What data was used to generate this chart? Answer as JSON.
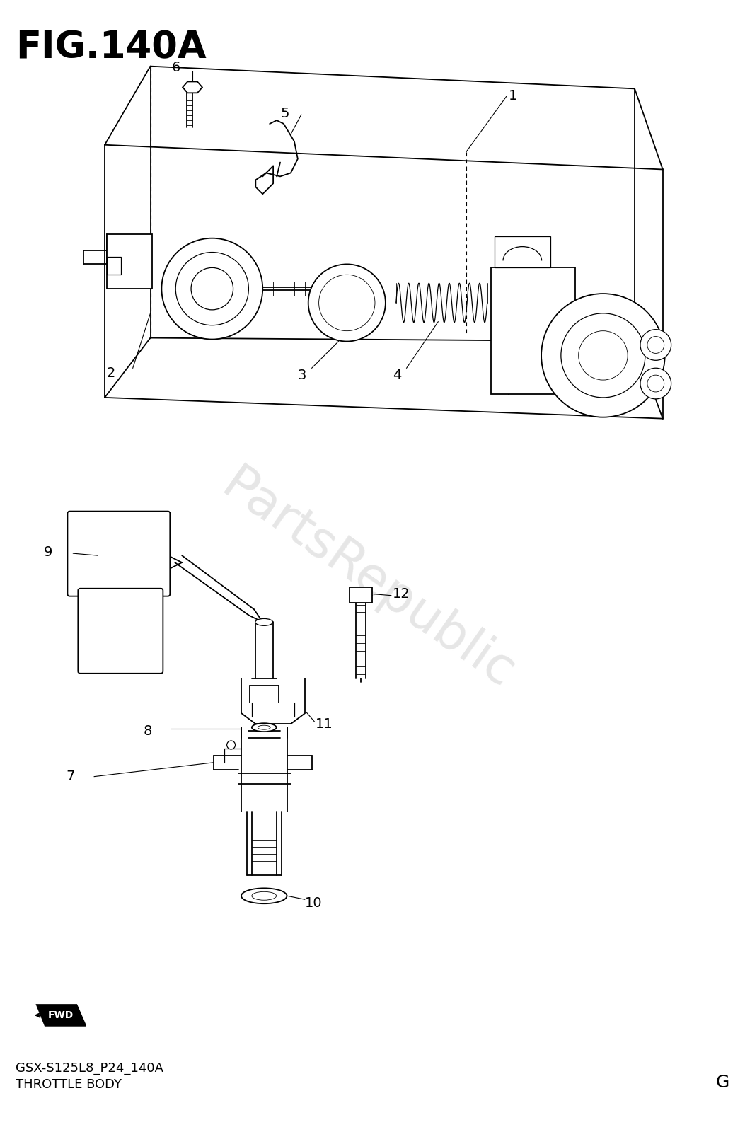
{
  "title": "FIG.140A",
  "subtitle1": "GSX-S125L8_P24_140A",
  "subtitle2": "THROTTLE BODY",
  "corner_label": "G",
  "bg": "#ffffff",
  "lc": "#000000",
  "wm_text": "PartsRepublic",
  "wm_color": "#c8c8c8",
  "fig_width": 10.53,
  "fig_height": 16.0
}
